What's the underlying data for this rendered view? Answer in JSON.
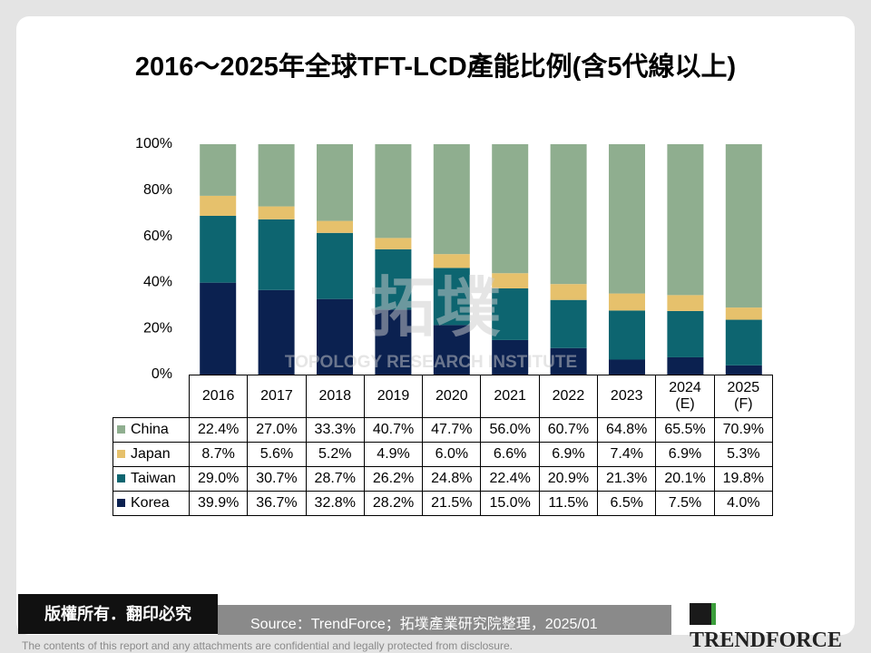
{
  "chart_data": {
    "type": "stacked_bar",
    "title": "2016～2025年全球TFT-LCD產能比例(含5代線以上)",
    "categories": [
      "2016",
      "2017",
      "2018",
      "2019",
      "2020",
      "2021",
      "2022",
      "2023",
      "2024\n(E)",
      "2025\n(F)"
    ],
    "series": [
      {
        "name": "China",
        "color": "#8fae8f",
        "values": [
          22.4,
          27.0,
          33.3,
          40.7,
          47.7,
          56.0,
          60.7,
          64.8,
          65.5,
          70.9
        ],
        "value_labels": [
          "22.4%",
          "27.0%",
          "33.3%",
          "40.7%",
          "47.7%",
          "56.0%",
          "60.7%",
          "64.8%",
          "65.5%",
          "70.9%"
        ]
      },
      {
        "name": "Japan",
        "color": "#e6c16c",
        "values": [
          8.7,
          5.6,
          5.2,
          4.9,
          6.0,
          6.6,
          6.9,
          7.4,
          6.9,
          5.3
        ],
        "value_labels": [
          "8.7%",
          "5.6%",
          "5.2%",
          "4.9%",
          "6.0%",
          "6.6%",
          "6.9%",
          "7.4%",
          "6.9%",
          "5.3%"
        ]
      },
      {
        "name": "Taiwan",
        "color": "#0d6570",
        "values": [
          29.0,
          30.7,
          28.7,
          26.2,
          24.8,
          22.4,
          20.9,
          21.3,
          20.1,
          19.8
        ],
        "value_labels": [
          "29.0%",
          "30.7%",
          "28.7%",
          "26.2%",
          "24.8%",
          "22.4%",
          "20.9%",
          "21.3%",
          "20.1%",
          "19.8%"
        ]
      },
      {
        "name": "Korea",
        "color": "#0b2150",
        "values": [
          39.9,
          36.7,
          32.8,
          28.2,
          21.5,
          15.0,
          11.5,
          6.5,
          7.5,
          4.0
        ],
        "value_labels": [
          "39.9%",
          "36.7%",
          "32.8%",
          "28.2%",
          "21.5%",
          "15.0%",
          "11.5%",
          "6.5%",
          "7.5%",
          "4.0%"
        ]
      }
    ],
    "ylim": [
      0,
      100
    ],
    "yticks": [
      {
        "value": 0,
        "label": "0%"
      },
      {
        "value": 20,
        "label": "20%"
      },
      {
        "value": 40,
        "label": "40%"
      },
      {
        "value": 60,
        "label": "60%"
      },
      {
        "value": 80,
        "label": "80%"
      },
      {
        "value": 100,
        "label": "100%"
      }
    ],
    "watermark": [
      "拓墣",
      "TOPOLOGY RESEARCH INSTITUTE"
    ]
  },
  "footer": {
    "copyright": "版權所有．翻印必究",
    "source": "Source：TrendForce；拓墣產業研究院整理，2025/01",
    "logo": "TrendForce",
    "disclaimer": "The contents of this report and any attachments are confidential and legally protected from disclosure."
  }
}
